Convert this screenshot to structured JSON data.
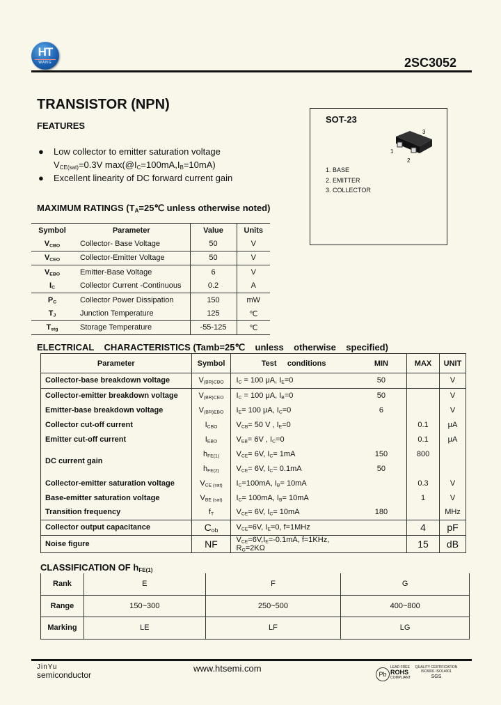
{
  "header": {
    "logo_text": "HT",
    "logo_sub": "WANG",
    "part_number": "2SC3052"
  },
  "title": "TRANSISTOR (NPN)",
  "features": {
    "heading": "FEATURES",
    "items": [
      [
        {
          "t": "Low collector to emitter saturation voltage"
        }
      ],
      [
        {
          "t": "V"
        },
        {
          "s": "CE(sat)"
        },
        {
          "t": "=0.3V max(@I"
        },
        {
          "s": "C"
        },
        {
          "t": "=100mA,I"
        },
        {
          "s": "B"
        },
        {
          "t": "=10mA)"
        }
      ],
      [
        {
          "t": "Excellent linearity of DC forward current gain"
        }
      ]
    ]
  },
  "package": {
    "name": "SOT-23",
    "pins": [
      "1. BASE",
      "2. EMITTER",
      "3. COLLECTOR"
    ],
    "pin_numbers": [
      "1",
      "2",
      "3"
    ]
  },
  "max_ratings": {
    "heading": [
      {
        "t": "MAXIMUM RATINGS (T"
      },
      {
        "s": "A"
      },
      {
        "t": "=25℃ unless otherwise noted)"
      }
    ],
    "headers": [
      "Symbol",
      "Parameter",
      "Value",
      "Units"
    ],
    "rows": [
      {
        "sym": [
          {
            "t": "V"
          },
          {
            "s": "CBO"
          }
        ],
        "param": "Collector- Base Voltage",
        "value": "50",
        "unit": "V"
      },
      {
        "sym": [
          {
            "t": "V"
          },
          {
            "s": "CEO"
          }
        ],
        "param": "Collector-Emitter Voltage",
        "value": "50",
        "unit": "V"
      },
      {
        "sym": [
          {
            "t": "V"
          },
          {
            "s": "EBO"
          }
        ],
        "param": "Emitter-Base Voltage",
        "value": "6",
        "unit": "V"
      },
      {
        "sym": [
          {
            "t": "I"
          },
          {
            "s": "C"
          }
        ],
        "param": "Collector Current -Continuous",
        "value": "0.2",
        "unit": "A"
      },
      {
        "sym": [
          {
            "t": "P"
          },
          {
            "s": "C"
          }
        ],
        "param": "Collector Power Dissipation",
        "value": "150",
        "unit": "mW"
      },
      {
        "sym": [
          {
            "t": "T"
          },
          {
            "s": "J"
          }
        ],
        "param": "Junction Temperature",
        "value": "125",
        "unit": "℃"
      },
      {
        "sym": [
          {
            "t": "T"
          },
          {
            "s": "stg"
          }
        ],
        "param": "Storage Temperature",
        "value": "-55-125",
        "unit": "℃"
      }
    ]
  },
  "electrical": {
    "heading": "ELECTRICAL    CHARACTERISTICS (Tamb=25℃    unless    otherwise    specified)",
    "headers": [
      "Parameter",
      "Symbol",
      "Test     conditions",
      "MIN",
      "MAX",
      "UNIT"
    ],
    "rows": [
      {
        "param": "Collector-base breakdown voltage",
        "sym": [
          {
            "t": "V"
          },
          {
            "s": "(BR)CBO"
          }
        ],
        "cond": [
          {
            "t": "I"
          },
          {
            "s": "C"
          },
          {
            "t": " = 100 μA,   I"
          },
          {
            "s": "E"
          },
          {
            "t": "=0"
          }
        ],
        "min": "50",
        "max": "",
        "unit": "V"
      },
      {
        "param": "Collector-emitter breakdown voltage",
        "sym": [
          {
            "t": "V"
          },
          {
            "s": "(BR)CEO"
          }
        ],
        "cond": [
          {
            "t": "I"
          },
          {
            "s": "C"
          },
          {
            "t": " = 100 μA, I"
          },
          {
            "s": "B"
          },
          {
            "t": "=0"
          }
        ],
        "min": "50",
        "max": "",
        "unit": "V"
      },
      {
        "param": "Emitter-base breakdown voltage",
        "sym": [
          {
            "t": "V"
          },
          {
            "s": "(BR)EBO"
          }
        ],
        "cond": [
          {
            "t": "I"
          },
          {
            "s": "E"
          },
          {
            "t": "= 100 μA, I"
          },
          {
            "s": "C"
          },
          {
            "t": "=0"
          }
        ],
        "min": "6",
        "max": "",
        "unit": "V"
      },
      {
        "param": "Collector cut-off current",
        "sym": [
          {
            "t": "I"
          },
          {
            "s": "CBO"
          }
        ],
        "cond": [
          {
            "t": "V"
          },
          {
            "s": "CB"
          },
          {
            "t": "= 50 V , I"
          },
          {
            "s": "E"
          },
          {
            "t": "=0"
          }
        ],
        "min": "",
        "max": "0.1",
        "unit": "μA"
      },
      {
        "param": "Emitter cut-off current",
        "sym": [
          {
            "t": "I"
          },
          {
            "s": "EBO"
          }
        ],
        "cond": [
          {
            "t": "V"
          },
          {
            "s": "EB"
          },
          {
            "t": "= 6V ,   I"
          },
          {
            "s": "C"
          },
          {
            "t": "=0"
          }
        ],
        "min": "",
        "max": "0.1",
        "unit": "μA"
      },
      {
        "param": "DC current gain",
        "sym": [
          {
            "t": "h"
          },
          {
            "s": "FE(1)"
          }
        ],
        "cond": [
          {
            "t": "V"
          },
          {
            "s": "CE"
          },
          {
            "t": "= 6V, I"
          },
          {
            "s": "C"
          },
          {
            "t": "= 1mA"
          }
        ],
        "min": "150",
        "max": "800",
        "unit": ""
      },
      {
        "param": "",
        "sym": [
          {
            "t": "h"
          },
          {
            "s": "FE(2)"
          }
        ],
        "cond": [
          {
            "t": "V"
          },
          {
            "s": "CE"
          },
          {
            "t": "= 6V, I"
          },
          {
            "s": "C"
          },
          {
            "t": "= 0.1mA"
          }
        ],
        "min": "50",
        "max": "",
        "unit": ""
      },
      {
        "param": "Collector-emitter saturation voltage",
        "sym": [
          {
            "t": "V"
          },
          {
            "s": "CE (sat)"
          }
        ],
        "cond": [
          {
            "t": "I"
          },
          {
            "s": "C"
          },
          {
            "t": "=100mA, I"
          },
          {
            "s": "B"
          },
          {
            "t": "= 10mA"
          }
        ],
        "min": "",
        "max": "0.3",
        "unit": "V"
      },
      {
        "param": "Base-emitter saturation voltage",
        "sym": [
          {
            "t": "V"
          },
          {
            "s": "BE (sat)"
          }
        ],
        "cond": [
          {
            "t": "I"
          },
          {
            "s": "C"
          },
          {
            "t": "= 100mA, I"
          },
          {
            "s": "B"
          },
          {
            "t": "= 10mA"
          }
        ],
        "min": "",
        "max": "1",
        "unit": "V"
      },
      {
        "param": "Transition frequency",
        "sym": [
          {
            "t": "f"
          },
          {
            "s": "T"
          }
        ],
        "cond": [
          {
            "t": "V"
          },
          {
            "s": "CE"
          },
          {
            "t": "= 6V, I"
          },
          {
            "s": "C"
          },
          {
            "t": "= 10mA"
          }
        ],
        "min": "180",
        "max": "",
        "unit": "MHz"
      },
      {
        "param": "Collector output capacitance",
        "sym": [
          {
            "t": "C"
          },
          {
            "s": "ob"
          }
        ],
        "cond": [
          {
            "t": "V"
          },
          {
            "s": "CE"
          },
          {
            "t": "=6V, I"
          },
          {
            "s": "E"
          },
          {
            "t": "=0, f=1MHz"
          }
        ],
        "min": "",
        "max": "4",
        "unit": "pF"
      },
      {
        "param": "Noise figure",
        "sym": [
          {
            "t": "NF"
          }
        ],
        "cond": [
          {
            "t": "V"
          },
          {
            "s": "CE"
          },
          {
            "t": "=6V,I"
          },
          {
            "s": "E"
          },
          {
            "t": "=-0.1mA, f=1KHz, R"
          },
          {
            "s": "G"
          },
          {
            "t": "=2KΩ"
          }
        ],
        "min": "",
        "max": "15",
        "unit": "dB"
      }
    ]
  },
  "classification": {
    "heading": [
      {
        "t": "CLASSIFICATION OF h"
      },
      {
        "s": "FE(1)"
      }
    ],
    "rows": [
      {
        "label": "Rank",
        "values": [
          "E",
          "F",
          "G"
        ]
      },
      {
        "label": "Range",
        "values": [
          "150~300",
          "250~500",
          "400~800"
        ]
      },
      {
        "label": "Marking",
        "values": [
          "LE",
          "LF",
          "LG"
        ]
      }
    ]
  },
  "footer": {
    "company_line1": "JinYu",
    "company_line2": "semiconductor",
    "website": "www.htsemi.com",
    "badges": {
      "lead_free": "LEAD FREE",
      "rohs": "ROHS",
      "compliant": "COMPLIANT",
      "quality": "QUALITY CERTIFICATION",
      "iso": "ISO9001 ISO14001",
      "sgs": "SGS",
      "pb": "Pb"
    }
  }
}
